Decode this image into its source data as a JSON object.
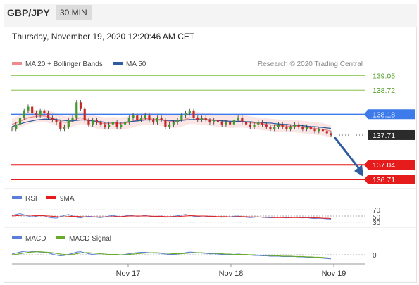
{
  "header": {
    "pair": "GBP/JPY",
    "timeframe": "30 MIN"
  },
  "datetime": "Thursday, November 19, 2020 12:20:46 AM CET",
  "legend": {
    "ma20": "MA 20 + Bollinger Bands",
    "ma50": "MA 50",
    "credit": "Research © 2020 Trading Central"
  },
  "colors": {
    "ma20": "#ee8a8a",
    "ma50": "#2f5c9e",
    "resistance": "#9ccc6b",
    "support": "#e61b1b",
    "pivot": "#3d7bea",
    "arrow": "#2f5c9e"
  },
  "chart_data": [
    {
      "type": "line",
      "name": "GBP/JPY price",
      "ylim": [
        136.6,
        139.12
      ],
      "levels": [
        {
          "value": 139.05,
          "label": "139.05",
          "kind": "resistance"
        },
        {
          "value": 138.72,
          "label": "138.72",
          "kind": "resistance"
        },
        {
          "value": 138.18,
          "label": "138.18",
          "kind": "pivot"
        },
        {
          "value": 137.71,
          "label": "137.71",
          "kind": "current"
        },
        {
          "value": 137.04,
          "label": "137.04",
          "kind": "support"
        },
        {
          "value": 136.71,
          "label": "136.71",
          "kind": "support"
        }
      ],
      "x_ticks": [
        "Nov 17",
        "Nov 18",
        "Nov 19"
      ],
      "series": [
        {
          "name": "Price",
          "values": [
            137.85,
            137.95,
            138.1,
            138.25,
            138.35,
            138.2,
            138.15,
            138.25,
            138.2,
            138.1,
            138.05,
            138.0,
            137.85,
            137.9,
            138.05,
            138.1,
            138.45,
            138.3,
            138.05,
            137.95,
            138.05,
            138.0,
            137.95,
            137.9,
            137.95,
            138.0,
            137.9,
            137.95,
            138.0,
            138.1,
            138.15,
            138.05,
            138.1,
            138.15,
            138.05,
            138.0,
            138.1,
            138.05,
            137.9,
            137.95,
            138.0,
            138.05,
            138.15,
            138.2,
            138.25,
            138.1,
            138.05,
            138.1,
            138.05,
            138.0,
            138.05,
            138.0,
            137.95,
            138.0,
            137.95,
            138.05,
            138.1,
            138.0,
            137.95,
            137.9,
            137.95,
            138.0,
            137.95,
            137.9,
            137.85,
            137.9,
            137.95,
            137.9,
            137.85,
            137.9,
            137.95,
            137.9,
            137.85,
            137.9,
            137.85,
            137.8,
            137.85,
            137.8,
            137.75,
            137.71
          ]
        },
        {
          "name": "MA 20",
          "values": [
            137.95,
            137.98,
            138.02,
            138.06,
            138.1,
            138.12,
            138.13,
            138.14,
            138.14,
            138.12,
            138.1,
            138.06,
            138.02,
            138.0,
            138.0,
            138.03,
            138.08,
            138.1,
            138.08,
            138.05,
            138.02,
            138.0,
            137.98,
            137.97,
            137.97,
            137.98,
            137.97,
            137.97,
            137.98,
            138.0,
            138.03,
            138.05,
            138.07,
            138.08,
            138.08,
            138.07,
            138.07,
            138.06,
            138.04,
            138.02,
            138.01,
            138.02,
            138.04,
            138.07,
            138.1,
            138.1,
            138.09,
            138.08,
            138.07,
            138.06,
            138.05,
            138.04,
            138.03,
            138.02,
            138.01,
            138.01,
            138.02,
            138.02,
            138.01,
            137.99,
            137.98,
            137.97,
            137.96,
            137.95,
            137.94,
            137.93,
            137.92,
            137.92,
            137.91,
            137.91,
            137.91,
            137.9,
            137.89,
            137.88,
            137.87,
            137.86,
            137.85,
            137.84,
            137.82,
            137.8
          ]
        },
        {
          "name": "MA 50",
          "values": [
            137.9,
            137.93,
            137.96,
            137.99,
            138.01,
            138.03,
            138.05,
            138.06,
            138.07,
            138.07,
            138.07,
            138.06,
            138.05,
            138.04,
            138.03,
            138.03,
            138.04,
            138.05,
            138.05,
            138.04,
            138.03,
            138.02,
            138.01,
            138.0,
            138.0,
            138.0,
            138.0,
            138.0,
            138.0,
            138.01,
            138.02,
            138.03,
            138.04,
            138.05,
            138.05,
            138.05,
            138.05,
            138.05,
            138.04,
            138.04,
            138.03,
            138.03,
            138.04,
            138.05,
            138.06,
            138.06,
            138.06,
            138.06,
            138.05,
            138.05,
            138.04,
            138.04,
            138.03,
            138.03,
            138.02,
            138.02,
            138.02,
            138.02,
            138.01,
            138.01,
            138.0,
            138.0,
            137.99,
            137.98,
            137.98,
            137.97,
            137.96,
            137.95,
            137.95,
            137.94,
            137.93,
            137.93,
            137.92,
            137.91,
            137.9,
            137.9,
            137.89,
            137.88,
            137.87,
            137.86
          ]
        }
      ]
    },
    {
      "type": "line",
      "name": "RSI panel",
      "ylim": [
        25,
        75
      ],
      "ticks": [
        "70",
        "50",
        "30"
      ],
      "legend": [
        "RSI",
        "9MA"
      ],
      "series": [
        {
          "name": "RSI",
          "values": [
            52,
            55,
            58,
            54,
            50,
            47,
            49,
            53,
            51,
            46,
            44,
            43,
            48,
            52,
            55,
            50,
            46,
            44,
            47,
            49,
            48,
            46,
            45,
            47,
            50,
            52,
            49,
            48,
            50,
            53,
            51,
            49,
            50,
            52,
            49,
            47,
            48,
            50,
            46,
            47,
            49,
            51,
            53,
            55,
            52,
            49,
            48,
            50,
            49,
            47,
            48,
            47,
            46,
            48,
            47,
            49,
            50,
            48,
            46,
            45,
            46,
            47,
            46,
            45,
            44,
            45,
            46,
            45,
            44,
            45,
            46,
            45,
            44,
            45,
            43,
            42,
            43,
            42,
            41,
            40
          ]
        },
        {
          "name": "9MA",
          "values": [
            50,
            51,
            52,
            53,
            53,
            52,
            51,
            51,
            51,
            50,
            49,
            48,
            47,
            47,
            48,
            49,
            49,
            48,
            47,
            47,
            47,
            47,
            47,
            47,
            47,
            48,
            48,
            48,
            49,
            50,
            50,
            50,
            50,
            50,
            50,
            49,
            49,
            49,
            48,
            48,
            48,
            48,
            49,
            50,
            51,
            51,
            50,
            50,
            50,
            49,
            49,
            48,
            48,
            48,
            47,
            47,
            48,
            48,
            48,
            47,
            47,
            47,
            46,
            46,
            46,
            45,
            45,
            45,
            45,
            45,
            45,
            45,
            45,
            45,
            45,
            44,
            44,
            43,
            43,
            42
          ]
        }
      ]
    },
    {
      "type": "line",
      "name": "MACD panel",
      "ylim": [
        -0.25,
        0.25
      ],
      "ticks": [
        "0"
      ],
      "legend": [
        "MACD",
        "MACD Signal"
      ],
      "series": [
        {
          "name": "MACD",
          "values": [
            0.02,
            0.05,
            0.08,
            0.1,
            0.11,
            0.1,
            0.09,
            0.08,
            0.07,
            0.05,
            0.02,
            -0.01,
            -0.03,
            -0.02,
            0.01,
            0.04,
            0.08,
            0.09,
            0.06,
            0.03,
            0.01,
            0.0,
            -0.01,
            -0.01,
            0.0,
            0.01,
            0.0,
            0.0,
            0.01,
            0.03,
            0.05,
            0.06,
            0.07,
            0.07,
            0.06,
            0.05,
            0.05,
            0.04,
            0.02,
            0.01,
            0.01,
            0.02,
            0.04,
            0.06,
            0.08,
            0.07,
            0.06,
            0.05,
            0.04,
            0.03,
            0.03,
            0.02,
            0.01,
            0.01,
            0.0,
            0.01,
            0.02,
            0.01,
            0.0,
            -0.01,
            -0.02,
            -0.02,
            -0.03,
            -0.03,
            -0.04,
            -0.04,
            -0.04,
            -0.05,
            -0.05,
            -0.05,
            -0.05,
            -0.06,
            -0.06,
            -0.07,
            -0.07,
            -0.08,
            -0.09,
            -0.1,
            -0.11,
            -0.12
          ]
        },
        {
          "name": "MACD Signal",
          "values": [
            0.0,
            0.01,
            0.03,
            0.05,
            0.07,
            0.08,
            0.09,
            0.09,
            0.08,
            0.07,
            0.06,
            0.04,
            0.02,
            0.01,
            0.0,
            0.01,
            0.03,
            0.05,
            0.06,
            0.06,
            0.05,
            0.04,
            0.03,
            0.02,
            0.01,
            0.01,
            0.01,
            0.0,
            0.0,
            0.01,
            0.02,
            0.03,
            0.04,
            0.05,
            0.06,
            0.06,
            0.06,
            0.05,
            0.05,
            0.04,
            0.03,
            0.03,
            0.03,
            0.04,
            0.05,
            0.06,
            0.06,
            0.06,
            0.05,
            0.05,
            0.04,
            0.04,
            0.03,
            0.02,
            0.02,
            0.01,
            0.01,
            0.01,
            0.01,
            0.0,
            0.0,
            -0.01,
            -0.01,
            -0.02,
            -0.02,
            -0.03,
            -0.03,
            -0.04,
            -0.04,
            -0.04,
            -0.05,
            -0.05,
            -0.05,
            -0.06,
            -0.06,
            -0.07,
            -0.07,
            -0.08,
            -0.09,
            -0.1
          ]
        }
      ]
    }
  ]
}
